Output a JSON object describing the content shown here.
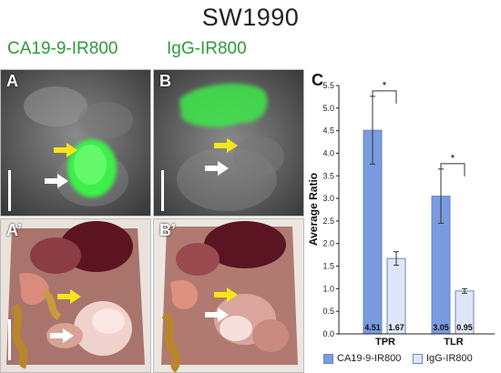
{
  "figure": {
    "title": "SW1990",
    "columns": [
      {
        "label": "CA19-9-IR800",
        "color": "#2f9a3c"
      },
      {
        "label": "IgG-IR800",
        "color": "#2f9a3c"
      }
    ],
    "panels": [
      {
        "letter": "A",
        "kind": "fluorescence",
        "signal": "tumor"
      },
      {
        "letter": "B",
        "kind": "fluorescence",
        "signal": "liver"
      },
      {
        "letter": "A’",
        "kind": "brightfield"
      },
      {
        "letter": "B’",
        "kind": "brightfield"
      }
    ],
    "chart_panel_letter": "C",
    "colors": {
      "fluorescence": "#3ef04a",
      "bar_ca": "#7b9be0",
      "bar_igg": "#dfe6f7",
      "arrow_yellow": "#f5e61a",
      "arrow_white": "#ffffff"
    }
  },
  "chart_data": {
    "type": "bar",
    "categories": [
      "TPR",
      "TLR"
    ],
    "series": [
      {
        "name": "CA19-9-IR800",
        "values": [
          4.51,
          3.05
        ],
        "errors": [
          0.75,
          0.6
        ],
        "labels": [
          "4.51",
          "3.05"
        ],
        "color": "#7b9be0"
      },
      {
        "name": "IgG-IR800",
        "values": [
          1.67,
          0.95
        ],
        "errors": [
          0.15,
          0.05
        ],
        "labels": [
          "1.67",
          "0.95"
        ],
        "color": "#dfe6f7"
      }
    ],
    "ylabel": "Average Ratio",
    "ylim": [
      0,
      5.5
    ],
    "yticks": [
      "0.0",
      "0.5",
      "1.0",
      "1.5",
      "2.0",
      "2.5",
      "3.0",
      "3.5",
      "4.0",
      "4.5",
      "5.0",
      "5.5"
    ],
    "significance": [
      {
        "category": "TPR",
        "label": "*"
      },
      {
        "category": "TLR",
        "label": "*"
      }
    ],
    "legend": "bottom",
    "grid": false
  }
}
